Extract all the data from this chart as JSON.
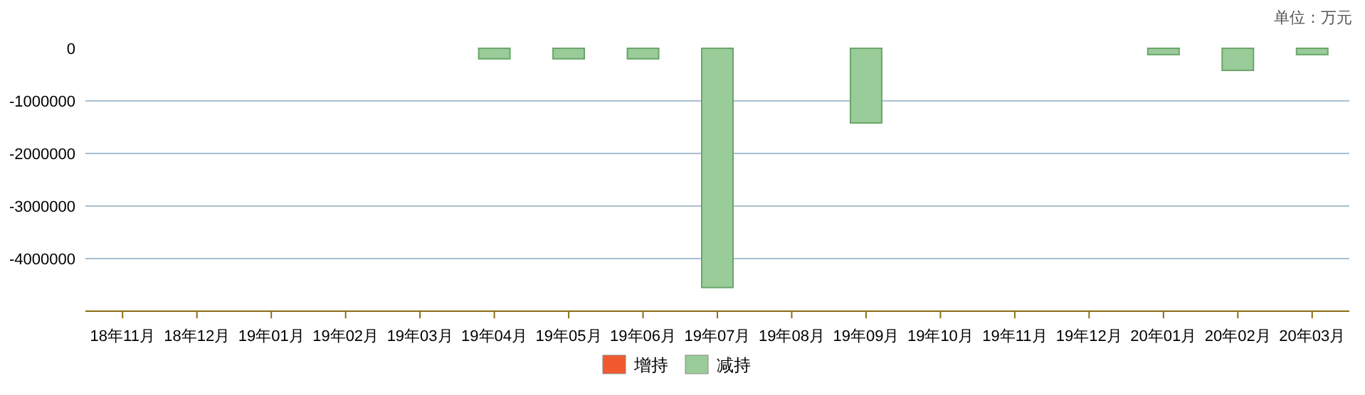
{
  "chart_data": {
    "type": "bar",
    "annotations": [
      "单位：万元"
    ],
    "categories": [
      "18年11月",
      "18年12月",
      "19年01月",
      "19年02月",
      "19年03月",
      "19年04月",
      "19年05月",
      "19年06月",
      "19年07月",
      "19年08月",
      "19年09月",
      "19年10月",
      "19年11月",
      "19年12月",
      "20年01月",
      "20年02月",
      "20年03月"
    ],
    "series": [
      {
        "name": "增持",
        "color": "#f15a2f",
        "values": [
          null,
          null,
          null,
          null,
          null,
          null,
          null,
          null,
          null,
          null,
          null,
          null,
          null,
          null,
          null,
          null,
          null
        ]
      },
      {
        "name": "减持",
        "color": "#99cc99",
        "values": [
          null,
          null,
          null,
          null,
          null,
          -200000,
          -200000,
          -200000,
          -4550000,
          null,
          -1420000,
          null,
          null,
          null,
          -120000,
          -420000,
          -120000
        ]
      }
    ],
    "ylim": [
      -5000000,
      0
    ],
    "yticks": [
      0,
      -1000000,
      -2000000,
      -3000000,
      -4000000
    ],
    "grid": "y",
    "legend": "bottom"
  }
}
